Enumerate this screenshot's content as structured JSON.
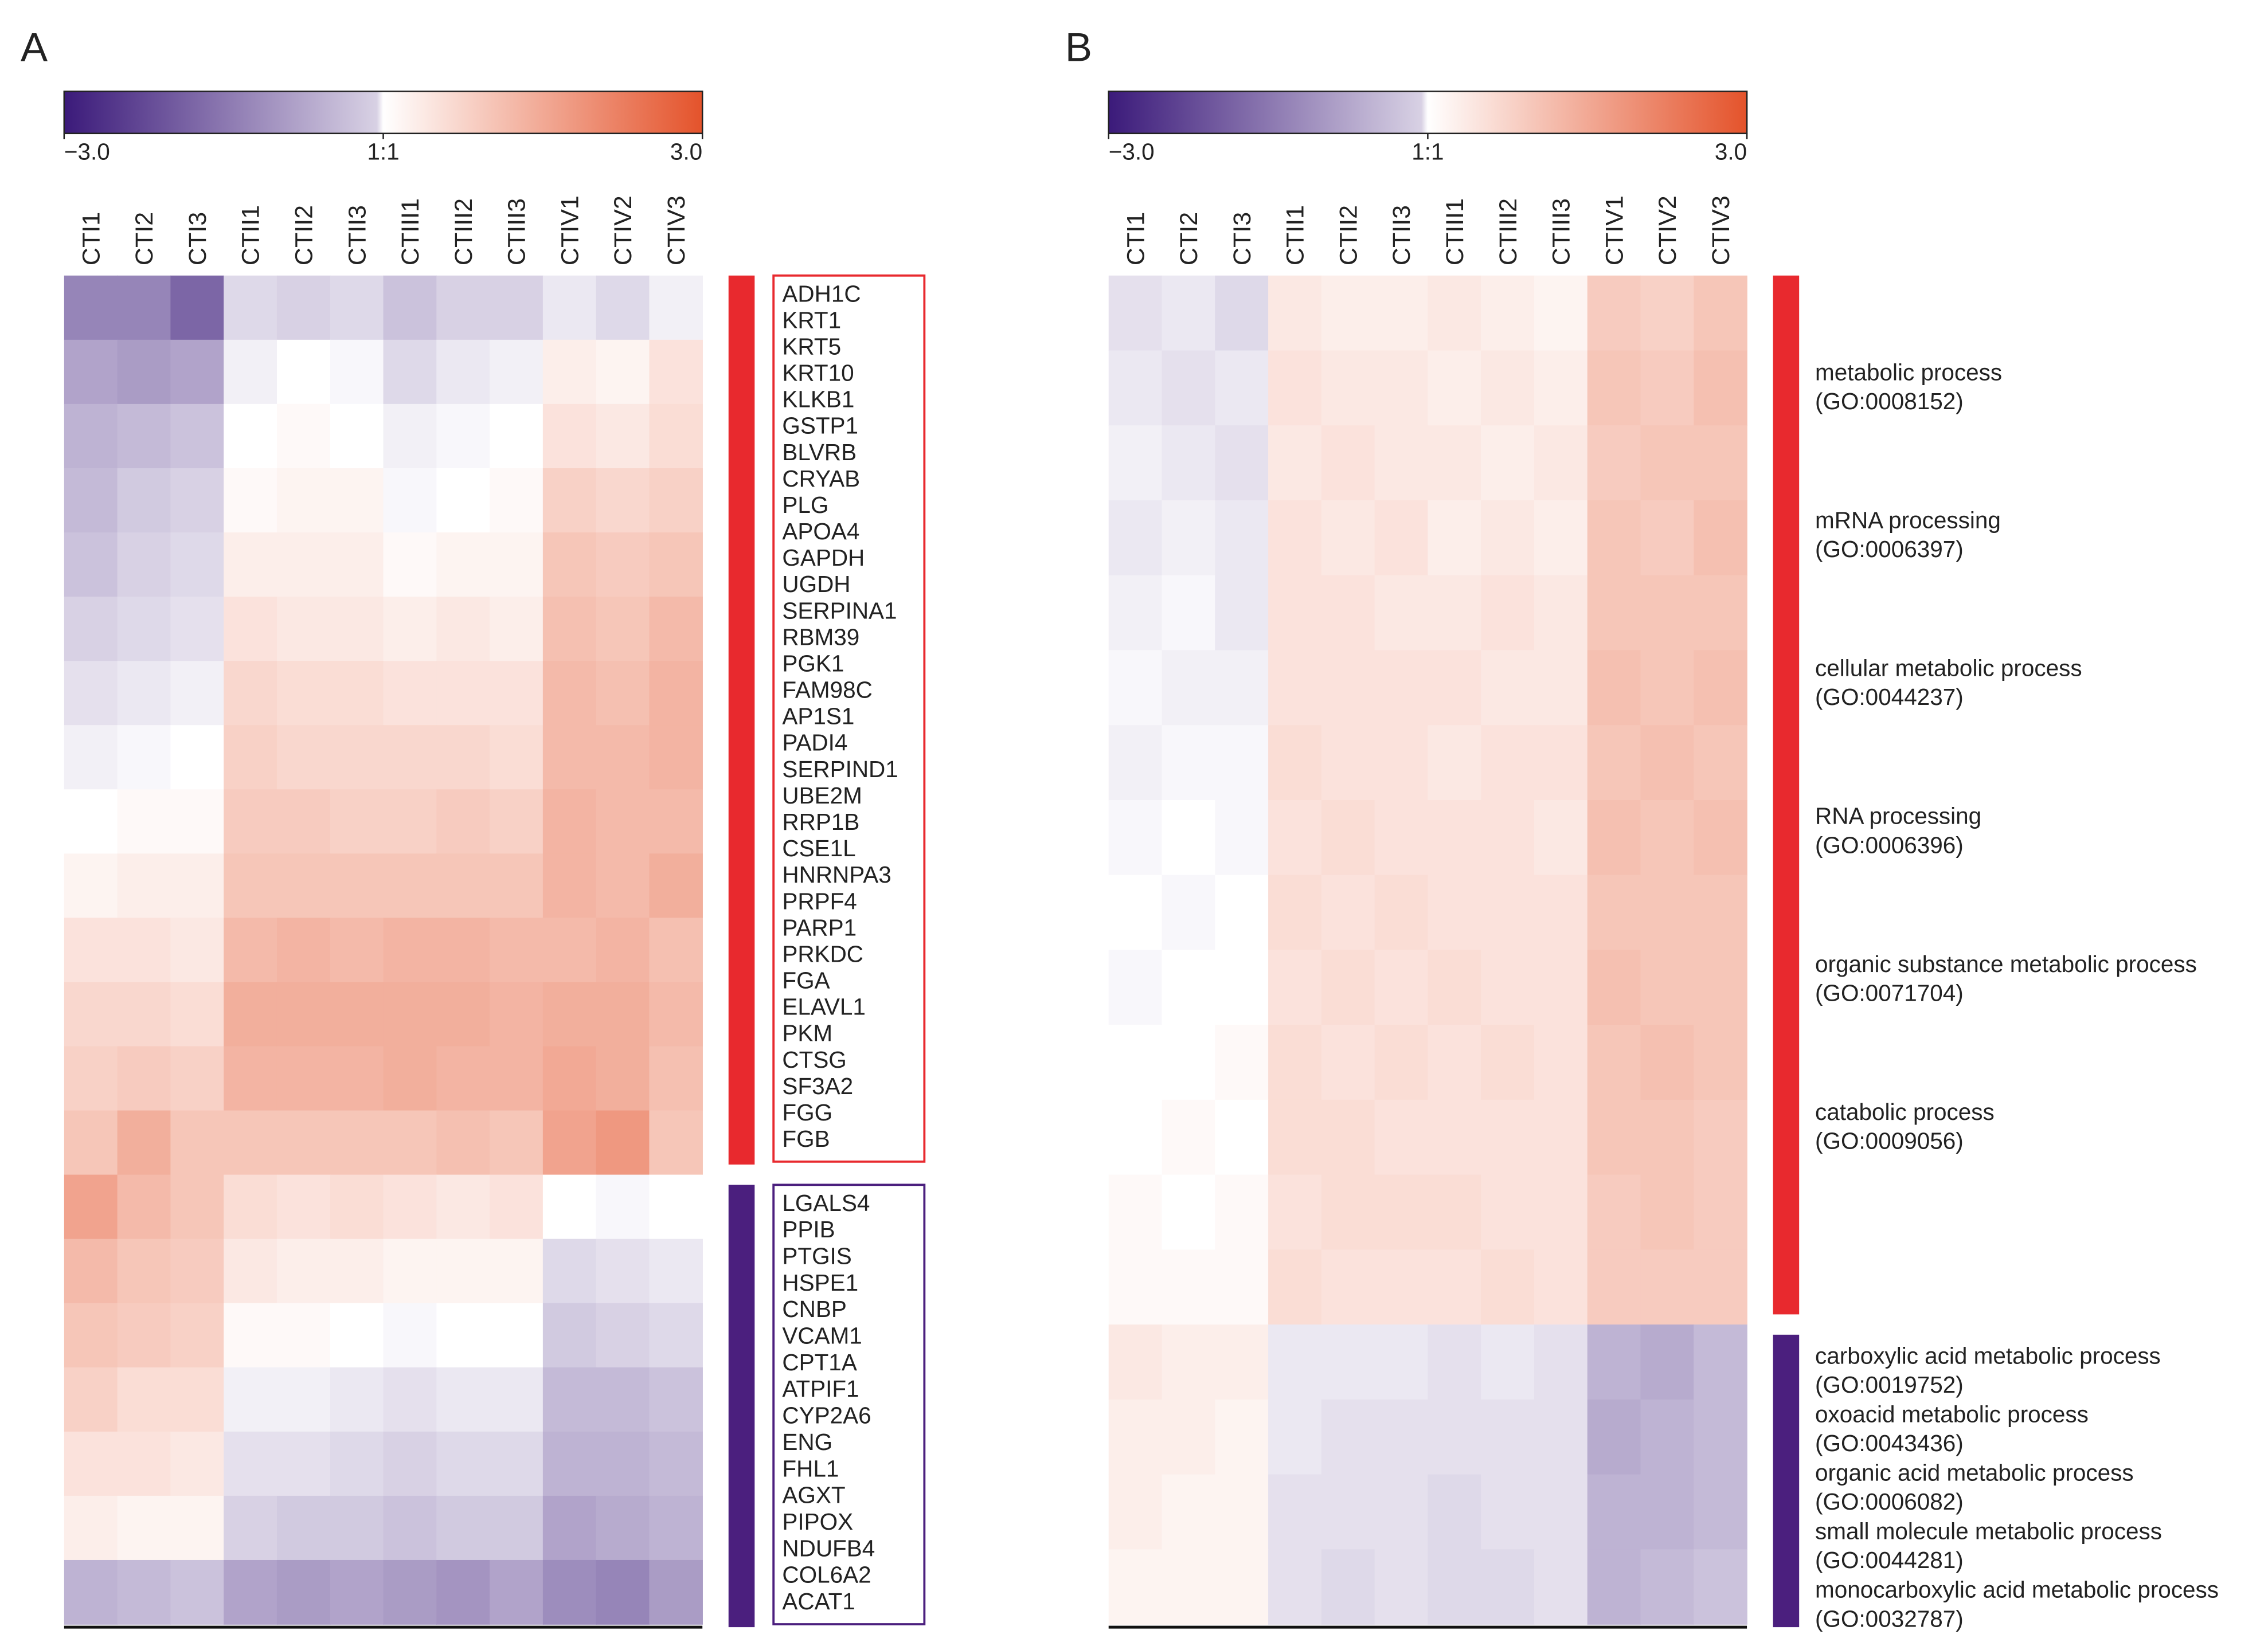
{
  "chart_data": [
    {
      "type": "heatmap",
      "panel_label": "A",
      "label_style": "box",
      "columns": [
        "CTI1",
        "CTI2",
        "CTI3",
        "CTII1",
        "CTII2",
        "CTII3",
        "CTIII1",
        "CTIII2",
        "CTIII3",
        "CTIV1",
        "CTIV2",
        "CTIV3"
      ],
      "zlim": [
        -3,
        3
      ],
      "colorbar_ticks": [
        {
          "value": -3,
          "label": "−3.0"
        },
        {
          "value": 0,
          "label": "1:1"
        },
        {
          "value": 3,
          "label": "3.0"
        }
      ],
      "colors": {
        "low": "#3b1a7a",
        "mid": "#ffffff",
        "high": "#e4532b"
      },
      "groups": [
        {
          "color": "#e8292e",
          "labels": [
            "ADH1C",
            "KRT1",
            "KRT5",
            "KRT10",
            "KLKB1",
            "GSTP1",
            "BLVRB",
            "CRYAB",
            "PLG",
            "APOA4",
            "GAPDH",
            "UGDH",
            "SERPINA1",
            "RBM39",
            "PGK1",
            "FAM98C",
            "AP1S1",
            "PADI4",
            "SERPIND1",
            "UBE2M",
            "RRP1B",
            "CSE1L",
            "HNRNPA3",
            "PRPF4",
            "PARP1",
            "PRKDC",
            "FGA",
            "ELAVL1",
            "PKM",
            "CTSG",
            "SF3A2",
            "FGG",
            "FGB"
          ],
          "values": [
            [
              -1.6,
              -1.6,
              -2,
              -0.5,
              -0.6,
              -0.5,
              -0.8,
              -0.6,
              -0.6,
              -0.3,
              -0.5,
              -0.2
            ],
            [
              -1.2,
              -1.3,
              -1.2,
              -0.2,
              0,
              -0.1,
              -0.5,
              -0.3,
              -0.2,
              0.3,
              0.2,
              0.5
            ],
            [
              -1,
              -0.9,
              -0.8,
              0,
              0.1,
              0,
              -0.2,
              -0.1,
              0,
              0.5,
              0.4,
              0.6
            ],
            [
              -0.9,
              -0.7,
              -0.6,
              0.1,
              0.2,
              0.2,
              -0.1,
              0,
              0.1,
              0.8,
              0.7,
              0.8
            ],
            [
              -0.8,
              -0.6,
              -0.5,
              0.3,
              0.3,
              0.3,
              0.1,
              0.2,
              0.2,
              1,
              0.9,
              1
            ],
            [
              -0.6,
              -0.5,
              -0.4,
              0.5,
              0.4,
              0.4,
              0.3,
              0.4,
              0.3,
              1.1,
              1,
              1.2
            ],
            [
              -0.4,
              -0.3,
              -0.2,
              0.7,
              0.6,
              0.6,
              0.5,
              0.5,
              0.5,
              1.2,
              1.1,
              1.3
            ],
            [
              -0.2,
              -0.1,
              0,
              0.8,
              0.7,
              0.7,
              0.7,
              0.7,
              0.6,
              1.2,
              1.2,
              1.3
            ],
            [
              0,
              0.1,
              0.1,
              0.9,
              0.9,
              0.8,
              0.8,
              0.9,
              0.8,
              1.3,
              1.2,
              1.2
            ],
            [
              0.2,
              0.3,
              0.3,
              1,
              1,
              1,
              1,
              1,
              1,
              1.3,
              1.2,
              1.4
            ],
            [
              0.5,
              0.5,
              0.4,
              1.2,
              1.3,
              1.2,
              1.3,
              1.3,
              1.2,
              1.2,
              1.3,
              1.1
            ],
            [
              0.7,
              0.7,
              0.6,
              1.4,
              1.4,
              1.4,
              1.4,
              1.4,
              1.3,
              1.4,
              1.4,
              1.2
            ],
            [
              0.8,
              0.9,
              0.8,
              1.3,
              1.3,
              1.3,
              1.4,
              1.3,
              1.3,
              1.5,
              1.4,
              1.1
            ],
            [
              1,
              1.4,
              1,
              1,
              1,
              1,
              1,
              1.1,
              1,
              1.6,
              1.8,
              1
            ]
          ]
        },
        {
          "color": "#4b1f7e",
          "labels": [
            "LGALS4",
            "PPIB",
            "PTGIS",
            "HSPE1",
            "CNBP",
            "VCAM1",
            "CPT1A",
            "ATPIF1",
            "CYP2A6",
            "ENG",
            "FHL1",
            "AGXT",
            "PIPOX",
            "NDUFB4",
            "COL6A2",
            "ACAT1"
          ],
          "values": [
            [
              1.6,
              1.2,
              1,
              0.6,
              0.5,
              0.6,
              0.5,
              0.4,
              0.5,
              0,
              -0.1,
              0
            ],
            [
              1.2,
              1,
              0.9,
              0.4,
              0.3,
              0.3,
              0.2,
              0.2,
              0.2,
              -0.5,
              -0.4,
              -0.3
            ],
            [
              1,
              0.9,
              0.8,
              0.1,
              0.1,
              0,
              -0.1,
              0,
              0,
              -0.7,
              -0.6,
              -0.5
            ],
            [
              0.8,
              0.6,
              0.6,
              -0.2,
              -0.2,
              -0.3,
              -0.4,
              -0.3,
              -0.3,
              -0.9,
              -0.9,
              -0.8
            ],
            [
              0.5,
              0.5,
              0.4,
              -0.4,
              -0.4,
              -0.5,
              -0.6,
              -0.5,
              -0.5,
              -1,
              -1,
              -0.9
            ],
            [
              0.3,
              0.2,
              0.2,
              -0.6,
              -0.7,
              -0.7,
              -0.8,
              -0.7,
              -0.7,
              -1.2,
              -1.1,
              -1
            ],
            [
              -1,
              -0.9,
              -0.8,
              -1.2,
              -1.3,
              -1.2,
              -1.3,
              -1.4,
              -1.2,
              -1.5,
              -1.6,
              -1.3
            ]
          ]
        }
      ]
    },
    {
      "type": "heatmap",
      "panel_label": "B",
      "label_style": "terms",
      "columns": [
        "CTI1",
        "CTI2",
        "CTI3",
        "CTII1",
        "CTII2",
        "CTII3",
        "CTIII1",
        "CTIII2",
        "CTIII3",
        "CTIV1",
        "CTIV2",
        "CTIV3"
      ],
      "zlim": [
        -3,
        3
      ],
      "colorbar_ticks": [
        {
          "value": -3,
          "label": "−3.0"
        },
        {
          "value": 0,
          "label": "1:1"
        },
        {
          "value": 3,
          "label": "3.0"
        }
      ],
      "colors": {
        "low": "#3b1a7a",
        "mid": "#ffffff",
        "high": "#e4532b"
      },
      "groups": [
        {
          "color": "#e8292e",
          "labels": [
            {
              "term": "metabolic process",
              "id": "(GO:0008152)"
            },
            {
              "term": "mRNA processing",
              "id": "(GO:0006397)"
            },
            {
              "term": "cellular metabolic process",
              "id": "(GO:0044237)"
            },
            {
              "term": "RNA processing",
              "id": "(GO:0006396)"
            },
            {
              "term": "organic substance metabolic process",
              "id": "(GO:0071704)"
            },
            {
              "term": "catabolic process",
              "id": "(GO:0009056)"
            }
          ],
          "values": [
            [
              -0.4,
              -0.3,
              -0.5,
              0.4,
              0.3,
              0.3,
              0.4,
              0.3,
              0.2,
              0.9,
              0.8,
              1
            ],
            [
              -0.3,
              -0.4,
              -0.3,
              0.5,
              0.4,
              0.4,
              0.3,
              0.4,
              0.3,
              1,
              0.9,
              1.1
            ],
            [
              -0.2,
              -0.3,
              -0.4,
              0.4,
              0.5,
              0.4,
              0.4,
              0.3,
              0.4,
              0.9,
              1,
              1
            ],
            [
              -0.3,
              -0.2,
              -0.3,
              0.5,
              0.4,
              0.5,
              0.3,
              0.4,
              0.3,
              1,
              0.9,
              1.1
            ],
            [
              -0.2,
              -0.1,
              -0.3,
              0.5,
              0.5,
              0.4,
              0.4,
              0.5,
              0.4,
              1,
              1,
              1
            ],
            [
              -0.1,
              -0.2,
              -0.2,
              0.5,
              0.5,
              0.5,
              0.5,
              0.4,
              0.4,
              1.1,
              1,
              1.1
            ],
            [
              -0.2,
              -0.1,
              -0.1,
              0.6,
              0.5,
              0.5,
              0.4,
              0.5,
              0.5,
              1,
              1.1,
              1
            ],
            [
              -0.1,
              0,
              -0.1,
              0.5,
              0.6,
              0.5,
              0.5,
              0.5,
              0.4,
              1.1,
              1,
              1.1
            ],
            [
              0,
              -0.1,
              0,
              0.6,
              0.5,
              0.6,
              0.5,
              0.5,
              0.5,
              1,
              1,
              1
            ],
            [
              -0.1,
              0,
              0,
              0.5,
              0.6,
              0.5,
              0.6,
              0.5,
              0.5,
              1.1,
              1,
              1
            ],
            [
              0,
              0,
              0.1,
              0.6,
              0.5,
              0.6,
              0.5,
              0.6,
              0.5,
              1,
              1.1,
              1
            ],
            [
              0,
              0.1,
              0,
              0.6,
              0.6,
              0.5,
              0.5,
              0.5,
              0.5,
              1,
              1,
              0.9
            ],
            [
              0.1,
              0,
              0.1,
              0.5,
              0.6,
              0.6,
              0.6,
              0.5,
              0.5,
              0.9,
              1,
              0.9
            ],
            [
              0.1,
              0.1,
              0.1,
              0.6,
              0.5,
              0.5,
              0.5,
              0.6,
              0.5,
              0.9,
              0.9,
              0.9
            ]
          ]
        },
        {
          "color": "#4b1f7e",
          "labels": [
            {
              "term": "carboxylic acid metabolic process",
              "id": "(GO:0019752)"
            },
            {
              "term": "oxoacid metabolic process",
              "id": "(GO:0043436)"
            },
            {
              "term": "organic acid metabolic process",
              "id": "(GO:0006082)"
            },
            {
              "term": "small molecule metabolic process",
              "id": "(GO:0044281)"
            },
            {
              "term": "monocarboxylic acid metabolic process",
              "id": "(GO:0032787)"
            }
          ],
          "values": [
            [
              0.4,
              0.3,
              0.3,
              -0.3,
              -0.3,
              -0.3,
              -0.4,
              -0.3,
              -0.4,
              -1,
              -1.1,
              -0.9
            ],
            [
              0.3,
              0.3,
              0.2,
              -0.3,
              -0.4,
              -0.4,
              -0.4,
              -0.4,
              -0.4,
              -1.1,
              -1,
              -0.9
            ],
            [
              0.3,
              0.2,
              0.2,
              -0.4,
              -0.4,
              -0.4,
              -0.5,
              -0.4,
              -0.4,
              -1,
              -1,
              -0.9
            ],
            [
              0.2,
              0.2,
              0.2,
              -0.4,
              -0.5,
              -0.4,
              -0.5,
              -0.5,
              -0.4,
              -1,
              -0.9,
              -0.8
            ]
          ]
        }
      ]
    }
  ]
}
